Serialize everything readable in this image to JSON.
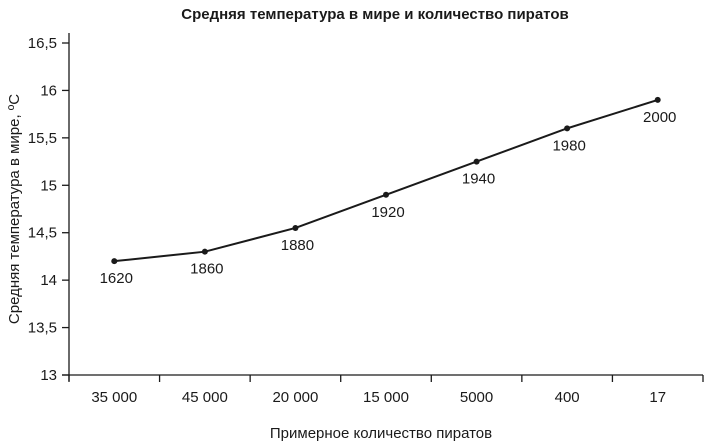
{
  "chart_data": {
    "type": "line",
    "title": "Средняя температура в мире и количество пиратов",
    "xlabel": "Примерное количество пиратов",
    "ylabel": "Средняя температура в мире, ºC",
    "categories": [
      "35 000",
      "45 000",
      "20 000",
      "15 000",
      "5000",
      "400",
      "17"
    ],
    "series": [
      {
        "name": "Средняя температура",
        "values": [
          14.2,
          14.3,
          14.55,
          14.9,
          15.25,
          15.6,
          15.9
        ],
        "point_labels": [
          "1620",
          "1860",
          "1880",
          "1920",
          "1940",
          "1980",
          "2000"
        ]
      }
    ],
    "ylim": [
      13,
      16.5
    ],
    "yticks": [
      13,
      13.5,
      14,
      14.5,
      15,
      15.5,
      16,
      16.5
    ],
    "ytick_labels": [
      "13",
      "13,5",
      "14",
      "14,5",
      "15",
      "15,5",
      "16",
      "16,5"
    ],
    "grid": false,
    "legend": "none",
    "line_color": "#1a1a1a"
  }
}
